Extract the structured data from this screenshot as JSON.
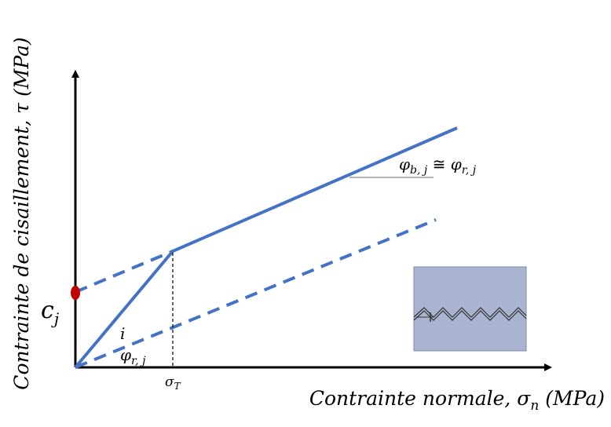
{
  "y_axis_label": {
    "main": "Contrainte de cisaillement, τ",
    "unit": "(MPa)"
  },
  "x_axis_label": {
    "main": "Contrainte normale, σ",
    "sub": "n",
    "unit": "(MPa)"
  },
  "labels": {
    "cohesion": {
      "base": "c",
      "sub": "j"
    },
    "dilation_angle": "i",
    "residual_angle": {
      "base": "φ",
      "sub": "r, j"
    },
    "transition_stress": {
      "base": "σ",
      "sub": "T"
    },
    "peak_angle": {
      "base": "φ",
      "sub": "b, j",
      "relation": " ≅ ",
      "base2": "φ",
      "sub2": "r, j"
    }
  }
}
